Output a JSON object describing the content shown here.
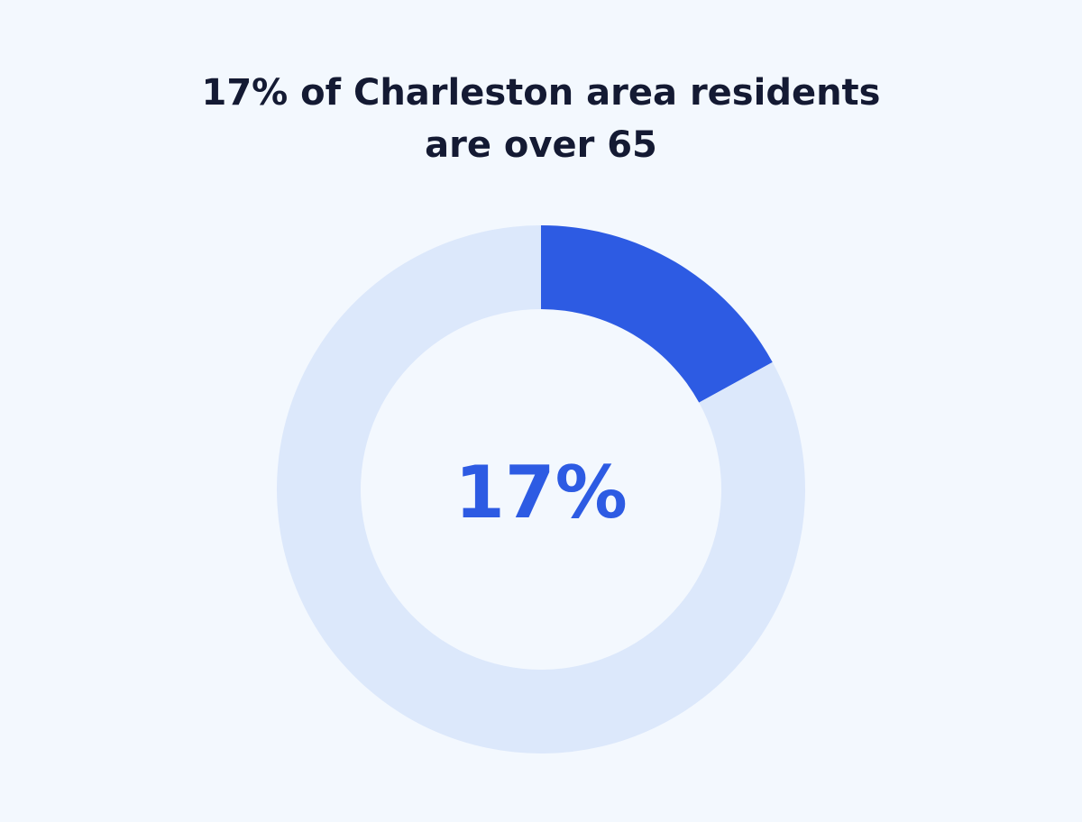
{
  "title_lines": [
    "17% of Charleston area residents",
    "are over 65"
  ],
  "center_label": "17%",
  "colors": {
    "background": "#f3f8fe",
    "title": "#141a33",
    "highlight": "#2d5be3",
    "remainder": "#dce8fb",
    "center_text": "#2d5be3"
  },
  "chart_data": {
    "type": "pie",
    "title": "17% of Charleston area residents are over 65",
    "slices": [
      {
        "value": 17,
        "color": "#2d5be3"
      },
      {
        "value": 83,
        "color": "#dce8fb"
      }
    ],
    "center_label": "17%"
  }
}
